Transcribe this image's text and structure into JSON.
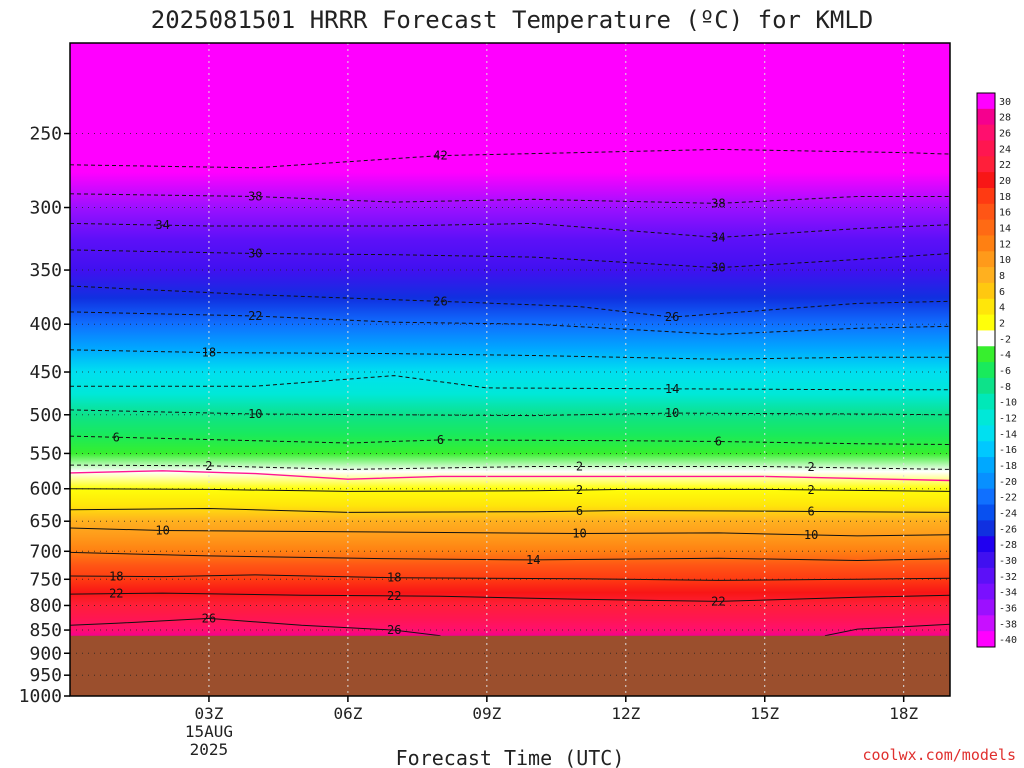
{
  "chart_data": {
    "type": "heatmap",
    "title": "2025081501 HRRR Forecast Temperature (ºC) for KMLD",
    "xlabel": "Forecast Time (UTC)",
    "ylabel": "",
    "credit": "coolwx.com/models",
    "y_scale": "log",
    "y_inverted": true,
    "ylim": [
      1000,
      200
    ],
    "y_ticks": [
      250,
      300,
      350,
      400,
      450,
      500,
      550,
      600,
      650,
      700,
      750,
      800,
      850,
      900,
      950,
      1000
    ],
    "xlim": [
      0,
      18
    ],
    "x_ticks": [
      {
        "hour": 3,
        "label": "03Z",
        "date_lines": [
          "15AUG",
          "2025"
        ]
      },
      {
        "hour": 6,
        "label": "06Z",
        "date_lines": []
      },
      {
        "hour": 9,
        "label": "09Z",
        "date_lines": []
      },
      {
        "hour": 12,
        "label": "12Z",
        "date_lines": []
      },
      {
        "hour": 15,
        "label": "15Z",
        "date_lines": []
      },
      {
        "hour": 18,
        "label": "18Z",
        "date_lines": []
      }
    ],
    "grid": true,
    "ground_pressure": 862,
    "ground_color": "#9b4f2d",
    "colorbar": {
      "labels": [
        "30",
        "28",
        "26",
        "24",
        "22",
        "20",
        "18",
        "16",
        "14",
        "12",
        "10",
        "8",
        "6",
        "4",
        "2",
        "-2",
        "-4",
        "-6",
        "-8",
        "-10",
        "-12",
        "-14",
        "-16",
        "-18",
        "-20",
        "-22",
        "-24",
        "-26",
        "-28",
        "-30",
        "-32",
        "-34",
        "-36",
        "-38",
        "-40"
      ],
      "colors": [
        "#ff00ff",
        "#f5008e",
        "#ff0f6e",
        "#ff1650",
        "#ff1f3a",
        "#f81616",
        "#ff3a12",
        "#ff5515",
        "#ff6a14",
        "#ff8012",
        "#ff9a1a",
        "#ffb01f",
        "#ffc810",
        "#ffe60a",
        "#ffff0a",
        "#ffffff",
        "#37ef2e",
        "#19ea5c",
        "#0de28a",
        "#00e8b8",
        "#00e8d8",
        "#00e0f0",
        "#00c8ff",
        "#00a8ff",
        "#0890ff",
        "#1070ff",
        "#0850f0",
        "#1030e0",
        "#2000f0",
        "#4010f0",
        "#5c10f8",
        "#7a10ff",
        "#9c10ff",
        "#c810ff",
        "#ff00ff"
      ]
    },
    "profile": [
      {
        "p": 200,
        "t": -52
      },
      {
        "p": 250,
        "t": -44
      },
      {
        "p": 275,
        "t": -40
      },
      {
        "p": 300,
        "t": -36
      },
      {
        "p": 325,
        "t": -32
      },
      {
        "p": 350,
        "t": -29
      },
      {
        "p": 375,
        "t": -25
      },
      {
        "p": 400,
        "t": -21
      },
      {
        "p": 425,
        "t": -17
      },
      {
        "p": 450,
        "t": -14
      },
      {
        "p": 475,
        "t": -11
      },
      {
        "p": 500,
        "t": -8
      },
      {
        "p": 525,
        "t": -6
      },
      {
        "p": 550,
        "t": -3
      },
      {
        "p": 575,
        "t": 0
      },
      {
        "p": 600,
        "t": 2
      },
      {
        "p": 625,
        "t": 5
      },
      {
        "p": 650,
        "t": 8
      },
      {
        "p": 675,
        "t": 11
      },
      {
        "p": 700,
        "t": 13
      },
      {
        "p": 725,
        "t": 16
      },
      {
        "p": 750,
        "t": 18
      },
      {
        "p": 775,
        "t": 21
      },
      {
        "p": 800,
        "t": 23
      },
      {
        "p": 825,
        "t": 25
      },
      {
        "p": 850,
        "t": 27
      },
      {
        "p": 875,
        "t": 29
      }
    ],
    "contours": [
      {
        "value": -42,
        "label": "42",
        "points": [
          [
            0,
            270
          ],
          [
            4,
            272
          ],
          [
            8,
            264
          ],
          [
            11,
            262
          ],
          [
            14,
            260
          ],
          [
            18,
            262
          ],
          [
            19,
            263
          ]
        ],
        "labels_at": [
          8
        ]
      },
      {
        "value": -38,
        "label": "38",
        "points": [
          [
            0,
            290
          ],
          [
            4,
            292
          ],
          [
            7,
            296
          ],
          [
            10,
            294
          ],
          [
            14,
            297
          ],
          [
            17,
            292
          ],
          [
            19,
            292
          ]
        ],
        "labels_at": [
          4,
          14
        ]
      },
      {
        "value": -34,
        "label": "34",
        "points": [
          [
            0,
            312
          ],
          [
            3,
            314
          ],
          [
            7,
            314
          ],
          [
            10,
            312
          ],
          [
            14,
            323
          ],
          [
            17,
            316
          ],
          [
            19,
            313
          ]
        ],
        "labels_at": [
          2,
          14
        ]
      },
      {
        "value": -30,
        "label": "30",
        "points": [
          [
            0,
            333
          ],
          [
            4,
            336
          ],
          [
            7,
            337
          ],
          [
            10,
            339
          ],
          [
            14,
            348
          ],
          [
            17,
            341
          ],
          [
            19,
            336
          ]
        ],
        "labels_at": [
          4,
          14
        ]
      },
      {
        "value": -26,
        "label": "26",
        "points": [
          [
            0,
            364
          ],
          [
            4,
            372
          ],
          [
            8,
            378
          ],
          [
            11,
            383
          ],
          [
            13,
            393
          ],
          [
            17,
            380
          ],
          [
            19,
            378
          ]
        ],
        "labels_at": [
          8,
          13
        ]
      },
      {
        "value": -22,
        "label": "22",
        "points": [
          [
            0,
            388
          ],
          [
            4,
            392
          ],
          [
            7,
            398
          ],
          [
            10,
            400
          ],
          [
            14,
            410
          ],
          [
            17,
            404
          ],
          [
            19,
            402
          ]
        ],
        "labels_at": [
          4
        ]
      },
      {
        "value": -18,
        "label": "18",
        "points": [
          [
            0,
            426
          ],
          [
            3,
            429
          ],
          [
            7,
            430
          ],
          [
            10,
            432
          ],
          [
            14,
            436
          ],
          [
            17,
            434
          ],
          [
            19,
            434
          ]
        ],
        "labels_at": [
          3
        ]
      },
      {
        "value": -14,
        "label": "14",
        "points": [
          [
            0,
            466
          ],
          [
            4,
            466
          ],
          [
            7,
            454
          ],
          [
            9,
            468
          ],
          [
            13,
            469
          ],
          [
            17,
            470
          ],
          [
            19,
            470
          ]
        ],
        "labels_at": [
          13
        ]
      },
      {
        "value": -10,
        "label": "10",
        "points": [
          [
            0,
            494
          ],
          [
            4,
            499
          ],
          [
            7,
            500
          ],
          [
            10,
            501
          ],
          [
            13,
            498
          ],
          [
            17,
            499
          ],
          [
            19,
            500
          ]
        ],
        "labels_at": [
          4,
          13
        ]
      },
      {
        "value": -6,
        "label": "6",
        "points": [
          [
            0,
            527
          ],
          [
            2,
            530
          ],
          [
            6,
            536
          ],
          [
            8,
            532
          ],
          [
            12,
            533
          ],
          [
            14,
            534
          ],
          [
            17,
            537
          ],
          [
            19,
            538
          ]
        ],
        "labels_at": [
          1,
          8,
          14
        ]
      },
      {
        "value": -2,
        "label": "2",
        "points": [
          [
            0,
            566
          ],
          [
            3,
            567
          ],
          [
            6,
            572
          ],
          [
            10,
            568
          ],
          [
            12,
            568
          ],
          [
            15,
            568
          ],
          [
            19,
            572
          ]
        ],
        "labels_at": [
          3,
          11,
          16
        ]
      },
      {
        "value": 2,
        "label": "2",
        "points": [
          [
            0,
            600
          ],
          [
            3,
            601
          ],
          [
            6,
            604
          ],
          [
            10,
            603
          ],
          [
            12,
            601
          ],
          [
            15,
            601
          ],
          [
            19,
            604
          ]
        ],
        "labels_at": [
          11,
          16
        ]
      },
      {
        "value": 6,
        "label": "6",
        "points": [
          [
            0,
            632
          ],
          [
            3,
            630
          ],
          [
            6,
            636
          ],
          [
            10,
            635
          ],
          [
            12,
            633
          ],
          [
            15,
            634
          ],
          [
            19,
            636
          ]
        ],
        "labels_at": [
          11,
          16
        ]
      },
      {
        "value": 10,
        "label": "10",
        "points": [
          [
            0,
            661
          ],
          [
            2,
            665
          ],
          [
            6,
            667
          ],
          [
            11,
            670
          ],
          [
            14,
            669
          ],
          [
            17,
            674
          ],
          [
            19,
            672
          ]
        ],
        "labels_at": [
          2,
          11,
          16
        ]
      },
      {
        "value": 14,
        "label": "14",
        "points": [
          [
            0,
            702
          ],
          [
            3,
            708
          ],
          [
            7,
            713
          ],
          [
            10,
            715
          ],
          [
            14,
            712
          ],
          [
            17,
            716
          ],
          [
            19,
            713
          ]
        ],
        "labels_at": [
          10
        ]
      },
      {
        "value": 18,
        "label": "18",
        "points": [
          [
            0,
            744
          ],
          [
            2,
            745
          ],
          [
            4,
            742
          ],
          [
            7,
            747
          ],
          [
            11,
            749
          ],
          [
            14,
            752
          ],
          [
            17,
            750
          ],
          [
            19,
            748
          ]
        ],
        "labels_at": [
          1,
          7
        ]
      },
      {
        "value": 22,
        "label": "22",
        "points": [
          [
            0,
            778
          ],
          [
            2,
            776
          ],
          [
            5,
            780
          ],
          [
            8,
            782
          ],
          [
            11,
            788
          ],
          [
            14,
            792
          ],
          [
            17,
            784
          ],
          [
            19,
            780
          ]
        ],
        "labels_at": [
          1,
          7,
          14
        ]
      },
      {
        "value": 26,
        "label": "26",
        "points": [
          [
            0,
            840
          ],
          [
            1,
            836
          ],
          [
            3,
            826
          ],
          [
            5,
            840
          ],
          [
            7,
            850
          ],
          [
            8,
            862
          ]
        ],
        "labels_at": [
          3,
          7
        ]
      },
      {
        "value": 26,
        "label": "",
        "points": [
          [
            16.3,
            862
          ],
          [
            17,
            848
          ],
          [
            19,
            838
          ]
        ],
        "labels_at": []
      }
    ],
    "freezing_line": {
      "points": [
        [
          0,
          577
        ],
        [
          2,
          574
        ],
        [
          4,
          578
        ],
        [
          6,
          586
        ],
        [
          8,
          582
        ],
        [
          12,
          582
        ],
        [
          15,
          582
        ],
        [
          19,
          588
        ]
      ],
      "color": "#ff1493"
    }
  }
}
